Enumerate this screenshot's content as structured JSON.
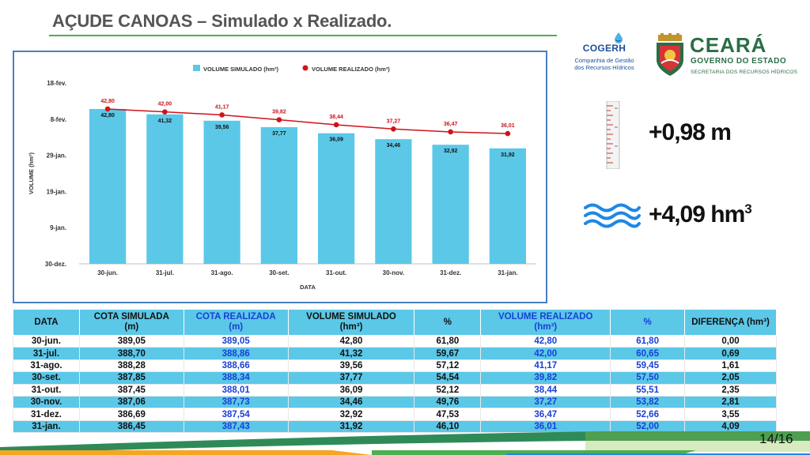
{
  "slide": {
    "title": "AÇUDE CANOAS – Simulado x Realizado.",
    "page_number": "14/16"
  },
  "logos": {
    "cogerh_name": "COGERH",
    "cogerh_line1": "Companhia de Gestão",
    "cogerh_line2": "dos Recursos Hídricos",
    "ceara_name": "CEARÁ",
    "ceara_gov": "GOVERNO DO ESTADO",
    "ceara_sec": "SECRETARIA DOS RECURSOS HÍDRICOS"
  },
  "metrics": {
    "level": "+0,98 m",
    "volume_prefix": "+4,09 hm",
    "volume_unit_sup": "3"
  },
  "colors": {
    "bar": "#5bc8e8",
    "line": "#d0121b",
    "table_header": "#5bc8e8",
    "realizado_text": "#1a3fd6",
    "title_rule": "#4caf50"
  },
  "chart_data": {
    "type": "bar",
    "xlabel": "DATA",
    "ylabel": "VOLUME (hm³)",
    "categories": [
      "30-jun.",
      "31-jul.",
      "31-ago.",
      "30-set.",
      "31-out.",
      "30-nov.",
      "31-dez.",
      "31-jan."
    ],
    "y_tick_labels": [
      "30-dez.",
      "9-jan.",
      "19-jan.",
      "29-jan.",
      "8-fev.",
      "18-fev."
    ],
    "ylim": [
      0,
      50
    ],
    "legend_position": "top",
    "grid": false,
    "series": [
      {
        "name": "VOLUME SIMULADO (hm³)",
        "kind": "bar",
        "values": [
          42.8,
          41.32,
          39.56,
          37.77,
          36.09,
          34.46,
          32.92,
          31.92
        ],
        "labels": [
          "42,80",
          "41,32",
          "39,56",
          "37,77",
          "36,09",
          "34,46",
          "32,92",
          "31,92"
        ]
      },
      {
        "name": "VOLUME REALIZADO (hm³)",
        "kind": "line",
        "values": [
          42.8,
          42.0,
          41.17,
          39.82,
          38.44,
          37.27,
          36.47,
          36.01
        ],
        "labels": [
          "42,80",
          "42,00",
          "41,17",
          "39,82",
          "38,44",
          "37,27",
          "36,47",
          "36,01"
        ]
      }
    ]
  },
  "table": {
    "headers": [
      {
        "line1": "DATA",
        "line2": "",
        "blue": false
      },
      {
        "line1": "COTA SIMULADA",
        "line2": "(m)",
        "blue": false
      },
      {
        "line1": "COTA REALIZADA",
        "line2": "(m)",
        "blue": true
      },
      {
        "line1": "VOLUME SIMULADO",
        "line2": "(hm³)",
        "blue": false
      },
      {
        "line1": "%",
        "line2": "",
        "blue": false
      },
      {
        "line1": "VOLUME REALIZADO",
        "line2": "(hm³)",
        "blue": true
      },
      {
        "line1": "%",
        "line2": "",
        "blue": true
      },
      {
        "line1": "DIFERENÇA (hm³)",
        "line2": "",
        "blue": false
      }
    ],
    "blue_columns": [
      2,
      5,
      6
    ],
    "rows": [
      [
        "30-jun.",
        "389,05",
        "389,05",
        "42,80",
        "61,80",
        "42,80",
        "61,80",
        "0,00"
      ],
      [
        "31-jul.",
        "388,70",
        "388,86",
        "41,32",
        "59,67",
        "42,00",
        "60,65",
        "0,69"
      ],
      [
        "31-ago.",
        "388,28",
        "388,66",
        "39,56",
        "57,12",
        "41,17",
        "59,45",
        "1,61"
      ],
      [
        "30-set.",
        "387,85",
        "388,34",
        "37,77",
        "54,54",
        "39,82",
        "57,50",
        "2,05"
      ],
      [
        "31-out.",
        "387,45",
        "388,01",
        "36,09",
        "52,12",
        "38,44",
        "55,51",
        "2,35"
      ],
      [
        "30-nov.",
        "387,06",
        "387,73",
        "34,46",
        "49,76",
        "37,27",
        "53,82",
        "2,81"
      ],
      [
        "31-dez.",
        "386,69",
        "387,54",
        "32,92",
        "47,53",
        "36,47",
        "52,66",
        "3,55"
      ],
      [
        "31-jan.",
        "386,45",
        "387,43",
        "31,92",
        "46,10",
        "36,01",
        "52,00",
        "4,09"
      ]
    ]
  }
}
